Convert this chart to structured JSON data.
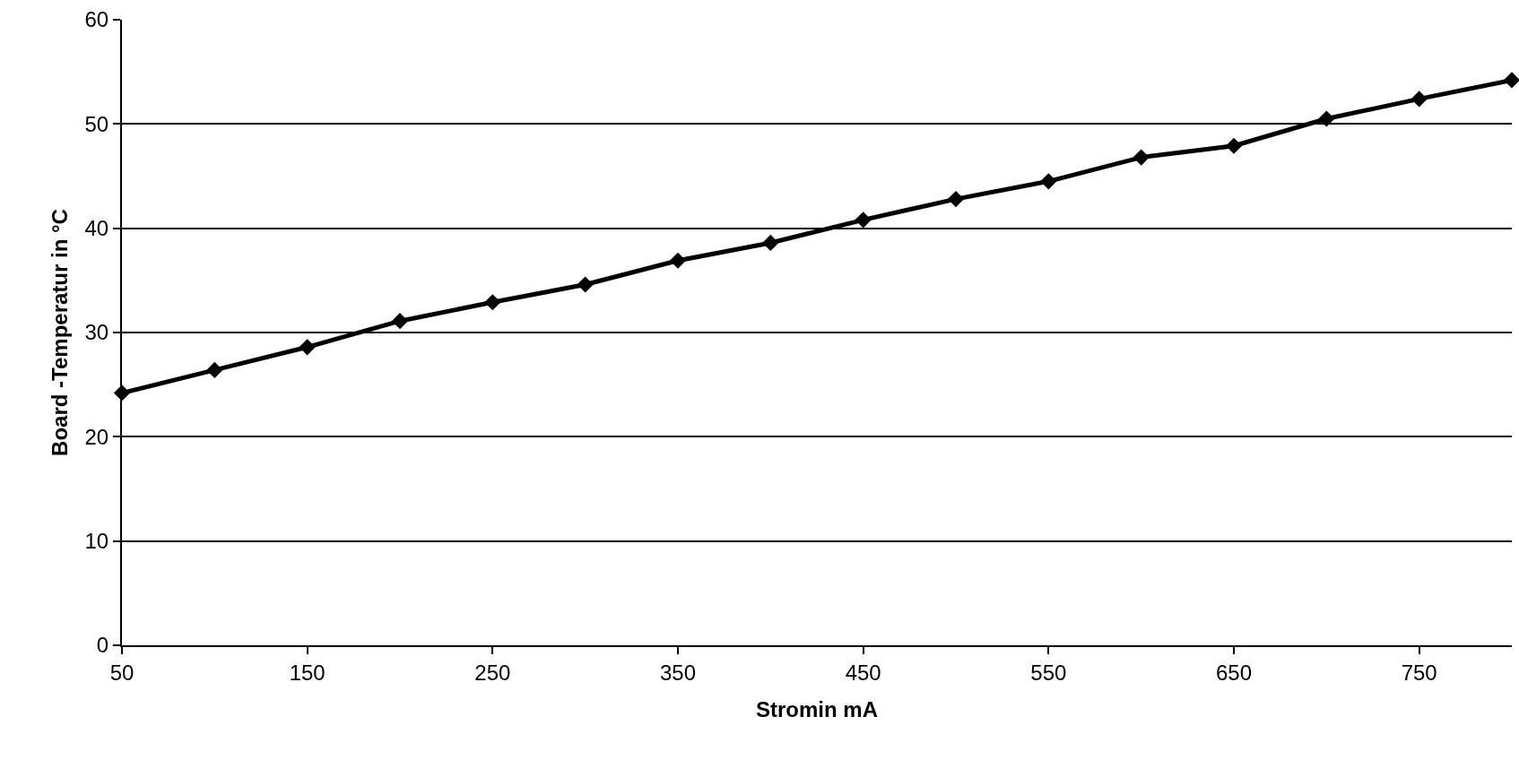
{
  "chart_data": {
    "type": "line",
    "xlabel": "Stromin mA",
    "ylabel": "Board -Temperatur in °C",
    "x": [
      50,
      100,
      150,
      200,
      250,
      300,
      350,
      400,
      450,
      500,
      550,
      600,
      650,
      700,
      750,
      800
    ],
    "series": [
      {
        "color": "#000000",
        "values": [
          24.2,
          26.4,
          28.6,
          31.1,
          32.9,
          34.6,
          36.9,
          38.6,
          40.8,
          42.8,
          44.5,
          46.8,
          47.9,
          50.5,
          52.4,
          54.2
        ]
      }
    ],
    "xlim": [
      50,
      800
    ],
    "xticks": [
      50,
      150,
      250,
      350,
      450,
      550,
      650,
      750
    ],
    "ylim": [
      0,
      60
    ],
    "yticks": [
      0,
      10,
      20,
      30,
      40,
      50,
      60
    ],
    "grid": "y",
    "marker": "diamond",
    "line_style": "solid"
  }
}
